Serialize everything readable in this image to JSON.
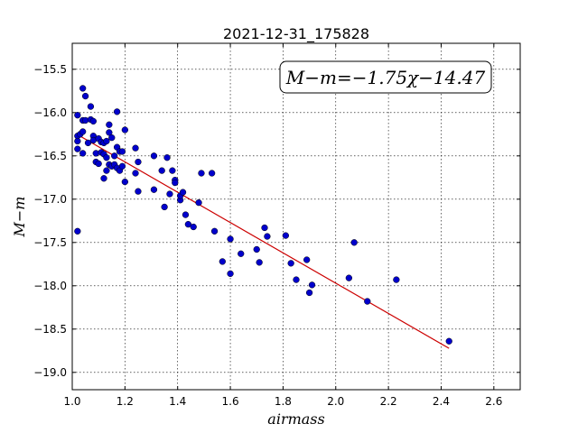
{
  "chart_data": {
    "type": "scatter",
    "title": "2021-12-31_175828",
    "xlabel": "airmass",
    "ylabel": "M−m",
    "xlim": [
      1.0,
      2.7
    ],
    "ylim": [
      -19.2,
      -15.2
    ],
    "y_inverted": true,
    "grid": true,
    "x_ticks": [
      "1.0",
      "1.2",
      "1.4",
      "1.6",
      "1.8",
      "2.0",
      "2.2",
      "2.4",
      "2.6"
    ],
    "y_ticks": [
      "−15.5",
      "−16.0",
      "−16.5",
      "−17.0",
      "−17.5",
      "−18.0",
      "−18.5",
      "−19.0"
    ],
    "x_tick_values": [
      1.0,
      1.2,
      1.4,
      1.6,
      1.8,
      2.0,
      2.2,
      2.4,
      2.6
    ],
    "y_tick_values": [
      -15.5,
      -16.0,
      -16.5,
      -17.0,
      -17.5,
      -18.0,
      -18.5,
      -19.0
    ],
    "annotation": "M−m=−1.75χ−14.47",
    "colors": {
      "points": "#0000cc",
      "fit": "#cc0000"
    },
    "fit_line": {
      "slope": -1.75,
      "intercept": -14.47,
      "x_range": [
        1.02,
        2.43
      ]
    },
    "points": [
      [
        1.02,
        -16.03
      ],
      [
        1.02,
        -16.27
      ],
      [
        1.02,
        -16.33
      ],
      [
        1.02,
        -16.42
      ],
      [
        1.02,
        -17.37
      ],
      [
        1.03,
        -16.25
      ],
      [
        1.04,
        -15.72
      ],
      [
        1.04,
        -16.22
      ],
      [
        1.04,
        -16.09
      ],
      [
        1.04,
        -16.47
      ],
      [
        1.05,
        -15.81
      ],
      [
        1.05,
        -16.09
      ],
      [
        1.06,
        -16.35
      ],
      [
        1.07,
        -15.93
      ],
      [
        1.07,
        -16.08
      ],
      [
        1.08,
        -16.1
      ],
      [
        1.08,
        -16.27
      ],
      [
        1.08,
        -16.32
      ],
      [
        1.09,
        -16.47
      ],
      [
        1.09,
        -16.57
      ],
      [
        1.1,
        -16.3
      ],
      [
        1.1,
        -16.59
      ],
      [
        1.11,
        -16.46
      ],
      [
        1.11,
        -16.34
      ],
      [
        1.12,
        -16.76
      ],
      [
        1.12,
        -16.35
      ],
      [
        1.12,
        -16.48
      ],
      [
        1.13,
        -16.67
      ],
      [
        1.13,
        -16.33
      ],
      [
        1.13,
        -16.52
      ],
      [
        1.14,
        -16.23
      ],
      [
        1.14,
        -16.14
      ],
      [
        1.14,
        -16.6
      ],
      [
        1.15,
        -16.62
      ],
      [
        1.15,
        -16.29
      ],
      [
        1.16,
        -16.5
      ],
      [
        1.16,
        -16.6
      ],
      [
        1.17,
        -16.64
      ],
      [
        1.17,
        -15.99
      ],
      [
        1.17,
        -16.4
      ],
      [
        1.18,
        -16.45
      ],
      [
        1.18,
        -16.67
      ],
      [
        1.19,
        -16.62
      ],
      [
        1.19,
        -16.45
      ],
      [
        1.2,
        -16.2
      ],
      [
        1.2,
        -16.8
      ],
      [
        1.24,
        -16.41
      ],
      [
        1.24,
        -16.7
      ],
      [
        1.25,
        -16.57
      ],
      [
        1.25,
        -16.91
      ],
      [
        1.31,
        -16.5
      ],
      [
        1.31,
        -16.89
      ],
      [
        1.34,
        -16.67
      ],
      [
        1.35,
        -17.09
      ],
      [
        1.36,
        -16.52
      ],
      [
        1.37,
        -16.94
      ],
      [
        1.38,
        -16.67
      ],
      [
        1.39,
        -16.78
      ],
      [
        1.39,
        -16.81
      ],
      [
        1.41,
        -17.01
      ],
      [
        1.41,
        -16.96
      ],
      [
        1.42,
        -16.92
      ],
      [
        1.43,
        -17.18
      ],
      [
        1.44,
        -17.29
      ],
      [
        1.46,
        -17.32
      ],
      [
        1.48,
        -17.04
      ],
      [
        1.49,
        -16.7
      ],
      [
        1.53,
        -16.7
      ],
      [
        1.54,
        -17.37
      ],
      [
        1.57,
        -17.72
      ],
      [
        1.6,
        -17.46
      ],
      [
        1.6,
        -17.86
      ],
      [
        1.64,
        -17.63
      ],
      [
        1.7,
        -17.58
      ],
      [
        1.71,
        -17.73
      ],
      [
        1.73,
        -17.33
      ],
      [
        1.74,
        -17.43
      ],
      [
        1.81,
        -17.42
      ],
      [
        1.83,
        -17.74
      ],
      [
        1.85,
        -17.93
      ],
      [
        1.89,
        -17.7
      ],
      [
        1.9,
        -18.08
      ],
      [
        1.91,
        -17.99
      ],
      [
        2.05,
        -17.91
      ],
      [
        2.07,
        -17.5
      ],
      [
        2.12,
        -18.18
      ],
      [
        2.23,
        -17.93
      ],
      [
        2.43,
        -18.64
      ]
    ]
  }
}
